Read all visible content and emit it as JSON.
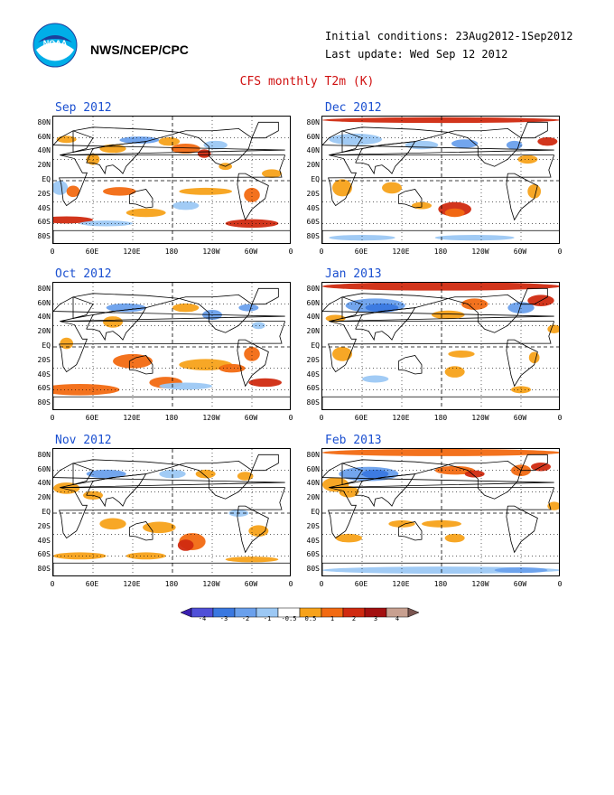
{
  "header": {
    "agency": "NWS/NCEP/CPC",
    "initial_conditions": "Initial conditions: 23Aug2012-1Sep2012",
    "last_update": "Last update: Wed Sep 12 2012",
    "title": "CFS monthly T2m (K)",
    "logo_text": "NOAA"
  },
  "axes": {
    "lat_labels": [
      "80N",
      "60N",
      "40N",
      "20N",
      "EQ",
      "20S",
      "40S",
      "60S",
      "80S"
    ],
    "lon_labels": [
      "0",
      "60E",
      "120E",
      "180",
      "120W",
      "60W",
      "0"
    ]
  },
  "panels": [
    {
      "title": "Sep 2012"
    },
    {
      "title": "Dec 2012"
    },
    {
      "title": "Oct 2012"
    },
    {
      "title": "Jan 2013"
    },
    {
      "title": "Nov 2012"
    },
    {
      "title": "Feb 2013"
    }
  ],
  "colorbar": {
    "labels": [
      "-4",
      "-3",
      "-2",
      "-1",
      "-0.5",
      "0.5",
      "1",
      "2",
      "3",
      "4"
    ],
    "colors": [
      "#3a1fb0",
      "#5050d8",
      "#3a78e0",
      "#6aa0ec",
      "#9cc8f4",
      "#ffffff",
      "#f7a21a",
      "#f26a12",
      "#d02a10",
      "#a31010",
      "#c8a090",
      "#7a5550"
    ]
  }
}
